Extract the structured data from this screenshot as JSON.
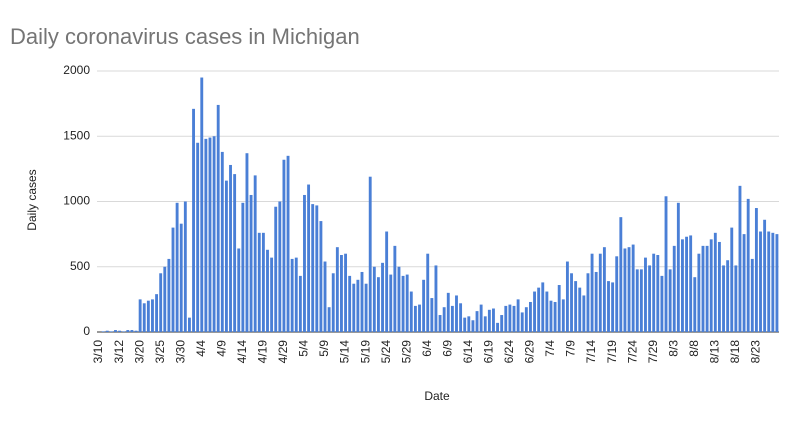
{
  "chart_data": {
    "type": "bar",
    "title": "Daily coronavirus cases in Michigan",
    "x_label": "Date",
    "y_label": "Daily cases",
    "color": "#4a7fd6",
    "grid": true,
    "ylim": [
      0,
      2000
    ],
    "yticks": [
      0,
      500,
      1000,
      1500,
      2000
    ],
    "categories": [
      "3/10",
      null,
      null,
      null,
      null,
      "3/12",
      null,
      null,
      null,
      null,
      "3/20",
      null,
      null,
      null,
      null,
      "3/25",
      null,
      null,
      null,
      null,
      "3/30",
      null,
      null,
      null,
      null,
      "4/4",
      null,
      null,
      null,
      null,
      "4/9",
      null,
      null,
      null,
      null,
      "4/14",
      null,
      null,
      null,
      null,
      "4/19",
      null,
      null,
      null,
      null,
      "4/29",
      null,
      null,
      null,
      null,
      "5/4",
      null,
      null,
      null,
      null,
      "5/9",
      null,
      null,
      null,
      null,
      "5/14",
      null,
      null,
      null,
      null,
      "5/19",
      null,
      null,
      null,
      null,
      "5/24",
      null,
      null,
      null,
      null,
      "5/29",
      null,
      null,
      null,
      null,
      "6/4",
      null,
      null,
      null,
      null,
      "6/9",
      null,
      null,
      null,
      null,
      "6/14",
      null,
      null,
      null,
      null,
      "6/19",
      null,
      null,
      null,
      null,
      "6/24",
      null,
      null,
      null,
      null,
      "6/29",
      null,
      null,
      null,
      null,
      "7/4",
      null,
      null,
      null,
      null,
      "7/9",
      null,
      null,
      null,
      null,
      "7/14",
      null,
      null,
      null,
      null,
      "7/19",
      null,
      null,
      null,
      null,
      "7/24",
      null,
      null,
      null,
      null,
      "7/29",
      null,
      null,
      null,
      null,
      "8/3",
      null,
      null,
      null,
      null,
      "8/8",
      null,
      null,
      null,
      null,
      "8/13",
      null,
      null,
      null,
      null,
      "8/18",
      null,
      null,
      null,
      null,
      "8/23",
      null,
      null,
      null,
      null,
      null
    ],
    "values": [
      0,
      5,
      10,
      5,
      15,
      10,
      5,
      15,
      15,
      10,
      250,
      220,
      240,
      250,
      290,
      450,
      500,
      560,
      800,
      990,
      830,
      1000,
      110,
      1710,
      1450,
      1950,
      1480,
      1490,
      1500,
      1740,
      1380,
      1160,
      1280,
      1210,
      640,
      990,
      1370,
      1050,
      1200,
      760,
      760,
      630,
      570,
      960,
      1000,
      1320,
      1350,
      560,
      570,
      430,
      1050,
      1130,
      980,
      970,
      850,
      540,
      190,
      450,
      650,
      590,
      600,
      430,
      370,
      400,
      460,
      370,
      1190,
      500,
      420,
      530,
      770,
      440,
      660,
      500,
      430,
      440,
      310,
      200,
      210,
      400,
      600,
      260,
      510,
      130,
      190,
      300,
      200,
      280,
      220,
      110,
      120,
      90,
      160,
      210,
      120,
      170,
      180,
      70,
      130,
      200,
      210,
      200,
      250,
      150,
      190,
      230,
      310,
      340,
      380,
      310,
      240,
      230,
      360,
      250,
      540,
      450,
      390,
      340,
      280,
      450,
      600,
      460,
      600,
      650,
      390,
      380,
      580,
      880,
      640,
      650,
      670,
      480,
      480,
      570,
      510,
      600,
      590,
      430,
      1040,
      480,
      660,
      990,
      710,
      730,
      740,
      420,
      600,
      660,
      660,
      710,
      760,
      690,
      510,
      550,
      800,
      510,
      1120,
      750,
      1020,
      560,
      950,
      770,
      860,
      770,
      760,
      750
    ]
  }
}
